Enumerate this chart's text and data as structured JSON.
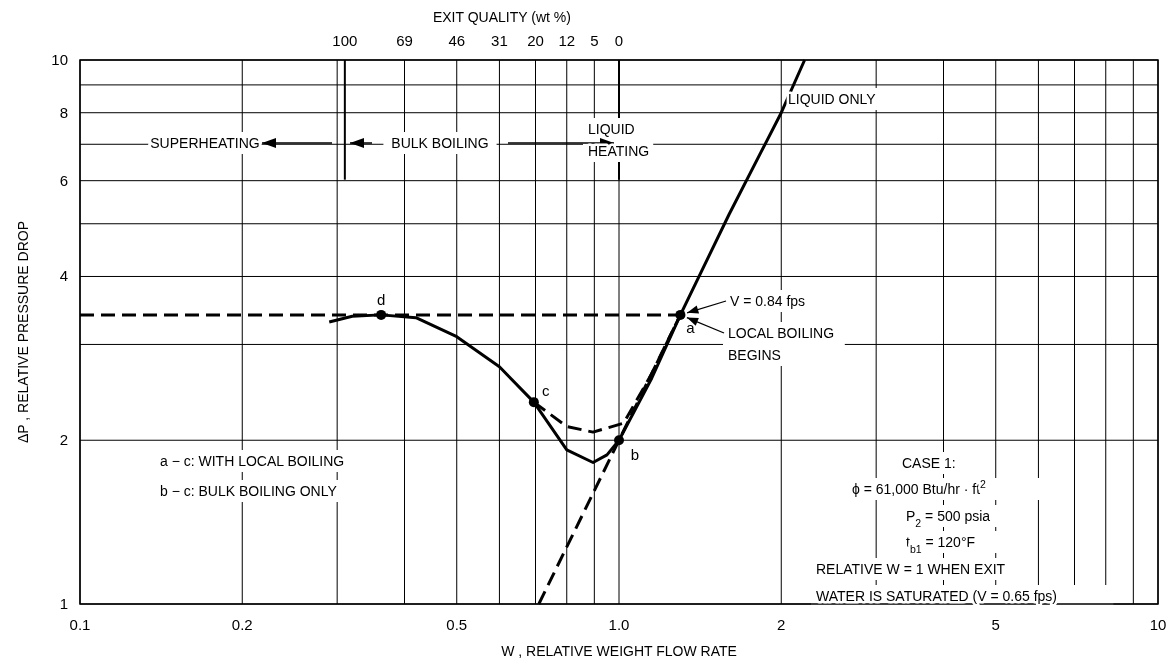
{
  "chart_data": {
    "type": "line",
    "xlabel": "W , RELATIVE WEIGHT FLOW RATE",
    "ylabel": "ΔP , RELATIVE PRESSURE DROP",
    "log": "xy",
    "grid": true,
    "tick_labels": "xy",
    "xlim": [
      0.1,
      10
    ],
    "xticks": [
      0.1,
      0.2,
      {
        "value": 0.3,
        "label": null
      },
      {
        "value": 0.4,
        "label": null
      },
      0.5,
      {
        "value": 0.6,
        "label": null
      },
      {
        "value": 0.7,
        "label": null
      },
      {
        "value": 0.8,
        "label": null
      },
      {
        "value": 0.9,
        "label": null
      },
      {
        "value": 1,
        "label": "1.0"
      },
      2,
      {
        "value": 3,
        "label": null
      },
      {
        "value": 4,
        "label": null
      },
      5,
      {
        "value": 6,
        "label": null
      },
      {
        "value": 7,
        "label": null
      },
      {
        "value": 8,
        "label": null
      },
      {
        "value": 9,
        "label": null
      },
      10
    ],
    "ylim": [
      1,
      10
    ],
    "yticks": [
      1,
      2,
      {
        "value": 3,
        "label": null
      },
      4,
      {
        "value": 5,
        "label": null
      },
      6,
      {
        "value": 7,
        "label": null
      },
      8,
      {
        "value": 9,
        "label": null
      },
      10
    ],
    "ref_lines": [
      {
        "axis": "x",
        "value": 0.31,
        "color": "#000000"
      },
      {
        "axis": "x",
        "value": 1.0,
        "color": "#000000"
      }
    ],
    "series": [
      {
        "line_style": "solid",
        "color": "#000000",
        "x": [
          0.29,
          0.32,
          0.362,
          0.42,
          0.5,
          0.6,
          0.695,
          0.8,
          0.895,
          0.95,
          1.0,
          1.15,
          1.3,
          1.6,
          2.0,
          2.21
        ],
        "values": [
          3.3,
          3.38,
          3.4,
          3.36,
          3.1,
          2.73,
          2.35,
          1.92,
          1.82,
          1.88,
          2.0,
          2.6,
          3.4,
          5.2,
          8.0,
          10
        ]
      },
      {
        "line_style": "dashed",
        "color": "#000000",
        "x": [
          0.1,
          1.3
        ],
        "values": [
          3.4,
          3.4
        ]
      },
      {
        "line_style": "dashed",
        "color": "#000000",
        "x": [
          0.695,
          0.8,
          0.895,
          1.02,
          1.15,
          1.3
        ],
        "values": [
          2.35,
          2.12,
          2.07,
          2.15,
          2.65,
          3.4
        ]
      },
      {
        "line_style": "dashed",
        "color": "#000000",
        "x": [
          0.71,
          1.0,
          1.3
        ],
        "values": [
          1.0,
          2.0,
          3.4
        ]
      },
      {
        "type": "scatter",
        "marker": "circle",
        "color": "#000000",
        "x": [
          1.3,
          1.0,
          0.695,
          0.362
        ],
        "values": [
          3.4,
          2.0,
          2.35,
          3.4
        ]
      }
    ],
    "annotations": [
      "SUPERHEATING",
      "BULK BOILING",
      "LIQUID HEATING",
      "LIQUID ONLY",
      {
        "text": "V = 0.84 fps",
        "x": 1.3,
        "y": 3.4
      },
      {
        "text": "LOCAL BOILING BEGINS",
        "x": 1.3,
        "y": 3.4
      },
      "a − c:  WITH LOCAL BOILING",
      "b − c:  BULK BOILING ONLY",
      "CASE 1:",
      "ϕ = 61,000 Btu/hr · ft$^{2}$",
      "P$_{2}$ = 500 psia",
      "t$_{b1}$ = 120°F",
      "RELATIVE W = 1 WHEN EXIT",
      "WATER IS SATURATED  (V = 0.65 fps)",
      {
        "text": "a",
        "x": 1.3,
        "y": 3.4
      },
      {
        "text": "b",
        "x": 1.0,
        "y": 2.0
      },
      {
        "text": "c",
        "x": 0.695,
        "y": 2.35
      },
      {
        "text": "d",
        "x": 0.362,
        "y": 3.4
      },
      "EXIT QUALITY (wt %)",
      "100",
      "69",
      "46",
      "31",
      "20",
      "12",
      "5",
      {
        "text": "0",
        "x": 1.0,
        "y": 10
      }
    ]
  }
}
